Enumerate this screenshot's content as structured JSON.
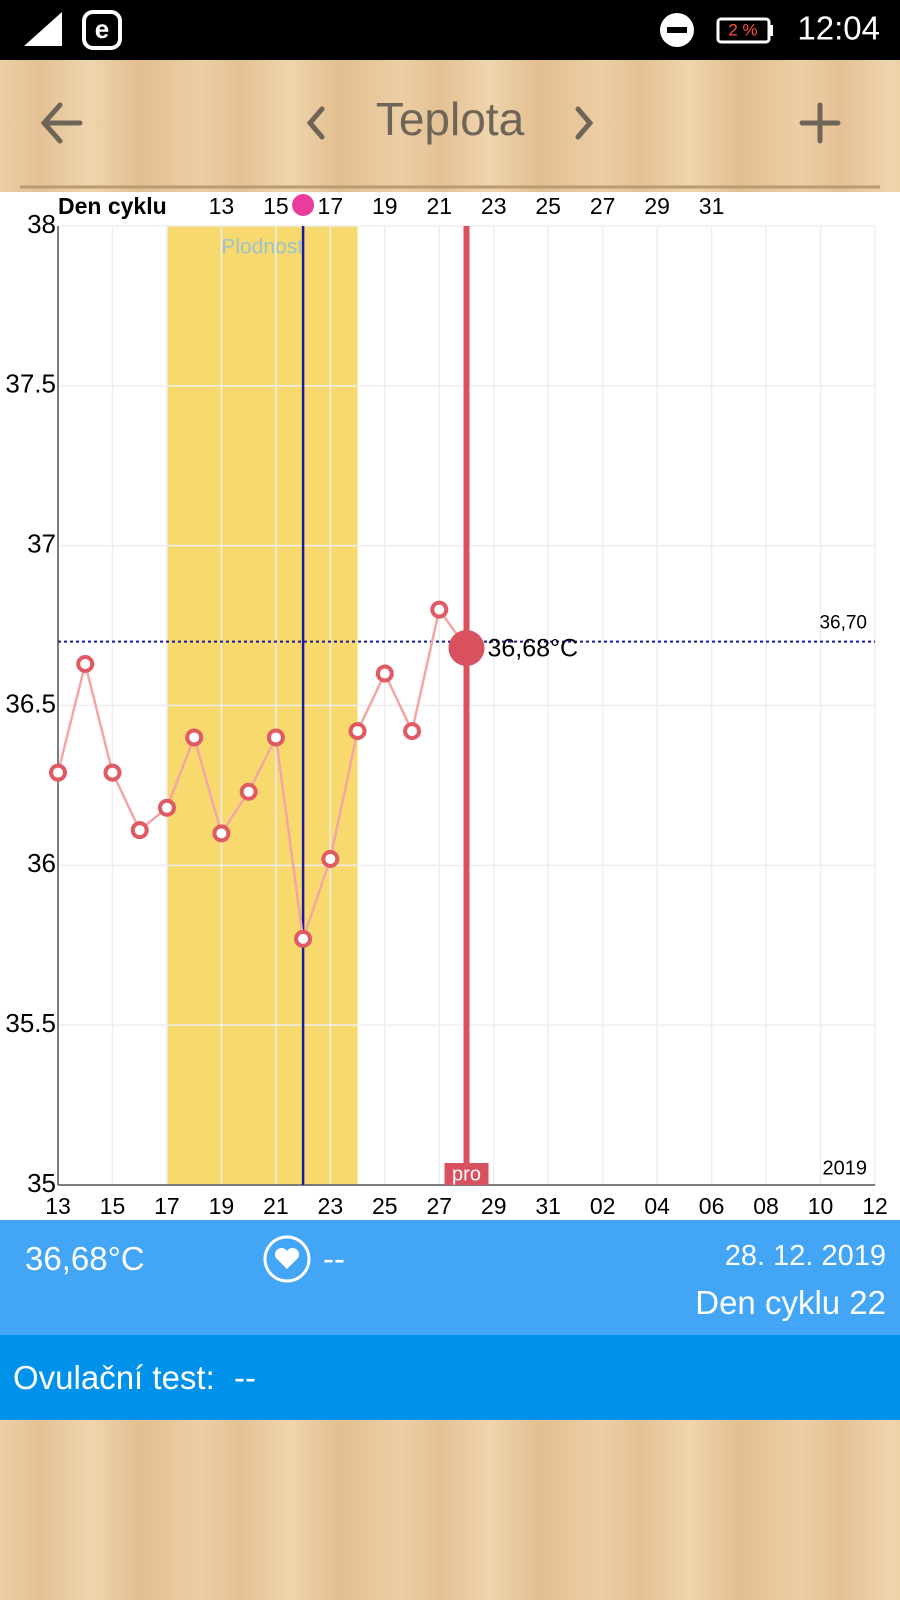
{
  "status_bar": {
    "battery": "2 %",
    "time": "12:04"
  },
  "header": {
    "title": "Teplota"
  },
  "chart_data": {
    "type": "line",
    "x_axis_top_label": "Den cyklu",
    "cycle_days": [
      null,
      null,
      null,
      null,
      null,
      null,
      13,
      null,
      15,
      null,
      17,
      null,
      19,
      null,
      21,
      null,
      23,
      null,
      25,
      null,
      27,
      null,
      29,
      null,
      31,
      null,
      null,
      null,
      null,
      null,
      null
    ],
    "categories": [
      "13",
      null,
      "15",
      null,
      "17",
      null,
      "19",
      null,
      "21",
      null,
      "23",
      null,
      "25",
      null,
      "27",
      null,
      "29",
      null,
      "31",
      null,
      "02",
      null,
      "04",
      null,
      "06",
      null,
      "08",
      null,
      "10",
      null,
      "12"
    ],
    "series": [
      {
        "name": "Teplota",
        "color": "#e05a64",
        "values": [
          36.29,
          36.63,
          36.29,
          36.11,
          36.18,
          36.4,
          36.1,
          36.23,
          36.4,
          35.77,
          36.02,
          36.42,
          36.6,
          36.42,
          36.8,
          36.68,
          null,
          null,
          null,
          null,
          null,
          null,
          null,
          null,
          null,
          null,
          null,
          null,
          null,
          null,
          null
        ],
        "value_labels": [
          null,
          null,
          null,
          null,
          null,
          null,
          null,
          null,
          null,
          null,
          null,
          null,
          null,
          null,
          null,
          "36,68°C",
          null,
          null,
          null,
          null,
          null,
          null,
          null,
          null,
          null,
          null,
          null,
          null,
          null,
          null,
          null
        ]
      }
    ],
    "ylim": [
      35,
      38
    ],
    "yticks": [
      35,
      35.5,
      36,
      36.5,
      37,
      37.5,
      38
    ],
    "reference_line": {
      "value": 36.7,
      "label": "36,70"
    },
    "fertile_label": "Plodnost",
    "selected_marker_label": "pro",
    "year_label": "2019",
    "grid": true
  },
  "info": {
    "temperature": "36,68°C",
    "heart": "--",
    "date": "28. 12. 2019",
    "cycle_day": "Den cyklu 22",
    "ovulation_test_label": "Ovulační test:",
    "ovulation_test_value": "--"
  }
}
